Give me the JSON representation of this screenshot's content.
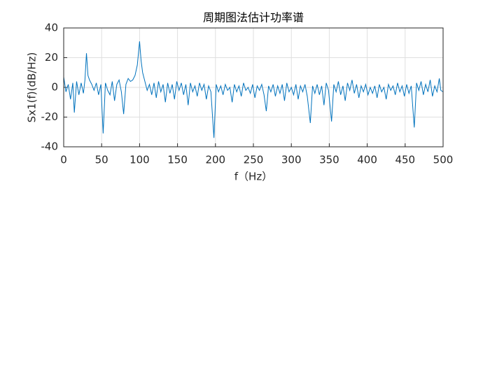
{
  "chart_data": {
    "type": "line",
    "title": "周期图法估计功率谱",
    "xlabel": "f（Hz）",
    "ylabel": "Sx1(f)(dB/Hz)",
    "x": [
      0,
      3,
      6,
      9,
      12,
      14,
      17,
      20,
      23,
      26,
      28,
      30,
      32,
      34,
      37,
      40,
      43,
      46,
      49,
      52,
      55,
      58,
      61,
      64,
      67,
      70,
      73,
      76,
      79,
      82,
      85,
      88,
      91,
      94,
      97,
      100,
      102,
      104,
      107,
      110,
      113,
      116,
      119,
      122,
      125,
      128,
      131,
      134,
      137,
      140,
      143,
      146,
      149,
      152,
      155,
      158,
      161,
      164,
      167,
      170,
      173,
      176,
      179,
      182,
      185,
      188,
      191,
      194,
      198,
      201,
      204,
      207,
      210,
      213,
      216,
      219,
      222,
      225,
      228,
      231,
      234,
      237,
      240,
      243,
      246,
      249,
      252,
      255,
      258,
      261,
      264,
      267,
      270,
      273,
      276,
      279,
      282,
      285,
      288,
      291,
      294,
      297,
      300,
      303,
      306,
      309,
      312,
      315,
      318,
      321,
      325,
      328,
      331,
      334,
      337,
      340,
      343,
      346,
      349,
      353,
      356,
      359,
      362,
      365,
      368,
      371,
      374,
      377,
      380,
      383,
      386,
      389,
      392,
      395,
      398,
      401,
      404,
      407,
      410,
      413,
      416,
      419,
      422,
      425,
      428,
      431,
      434,
      437,
      440,
      443,
      446,
      449,
      452,
      455,
      458,
      462,
      465,
      468,
      471,
      474,
      477,
      480,
      483,
      486,
      489,
      492,
      495,
      497,
      500
    ],
    "series": [
      {
        "name": "Sx1",
        "color": "#0072bd",
        "values": [
          7,
          -3,
          2,
          -8,
          3,
          -17,
          4,
          -5,
          3,
          -4,
          5,
          23,
          8,
          5,
          2,
          -2,
          3,
          -5,
          2,
          -31,
          3,
          -2,
          -5,
          4,
          -9,
          2,
          5,
          -3,
          -18,
          2,
          6,
          4,
          5,
          8,
          15,
          31,
          18,
          10,
          4,
          -2,
          2,
          -5,
          3,
          -7,
          4,
          -3,
          2,
          -10,
          3,
          -4,
          2,
          -8,
          4,
          -2,
          3,
          -5,
          2,
          -12,
          3,
          -3,
          1,
          -6,
          3,
          -2,
          2,
          -8,
          1,
          -3,
          -34,
          2,
          -3,
          1,
          -5,
          2,
          -2,
          0,
          -10,
          2,
          -3,
          1,
          -6,
          3,
          -2,
          0,
          -4,
          2,
          -7,
          1,
          -2,
          2,
          -5,
          -16,
          1,
          -3,
          2,
          -6,
          1,
          -4,
          2,
          -9,
          3,
          -3,
          0,
          -5,
          2,
          -8,
          1,
          -3,
          2,
          -6,
          -24,
          1,
          -4,
          2,
          -5,
          1,
          -12,
          3,
          -2,
          -23,
          2,
          -3,
          4,
          -5,
          1,
          -9,
          3,
          -2,
          5,
          -4,
          2,
          -7,
          1,
          -3,
          2,
          -5,
          0,
          -4,
          1,
          -7,
          2,
          -3,
          0,
          -8,
          2,
          -2,
          1,
          -5,
          3,
          -3,
          1,
          -6,
          2,
          -4,
          1,
          -27,
          3,
          -2,
          4,
          -5,
          2,
          -3,
          5,
          -6,
          1,
          -3,
          6,
          -2,
          -3
        ]
      }
    ],
    "xlim": [
      0,
      500
    ],
    "ylim": [
      -40,
      40
    ],
    "xticks": [
      0,
      50,
      100,
      150,
      200,
      250,
      300,
      350,
      400,
      450,
      500
    ],
    "yticks": [
      -40,
      -20,
      0,
      20,
      40
    ],
    "grid": true
  }
}
